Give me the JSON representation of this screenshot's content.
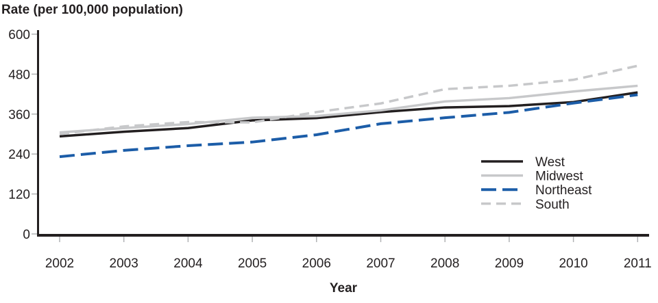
{
  "chart_data": {
    "type": "line",
    "title": "Rate (per 100,000 population)",
    "xlabel": "Year",
    "ylabel": "Rate (per 100,000 population)",
    "x": [
      2002,
      2003,
      2004,
      2005,
      2006,
      2007,
      2008,
      2009,
      2010,
      2011
    ],
    "yticks": [
      0,
      120,
      240,
      360,
      480,
      600
    ],
    "ylim": [
      0,
      600
    ],
    "grid": false,
    "legend_position": "right-center",
    "axis_color": "#231f20",
    "tick_color": "#b1b3b5",
    "series": [
      {
        "name": "West",
        "color": "#231f20",
        "dash": "solid",
        "values": [
          293,
          307,
          318,
          341,
          348,
          366,
          380,
          384,
          396,
          425
        ]
      },
      {
        "name": "Midwest",
        "color": "#c7c8ca",
        "dash": "solid",
        "values": [
          305,
          318,
          330,
          349,
          354,
          371,
          398,
          408,
          428,
          445
        ]
      },
      {
        "name": "Northeast",
        "color": "#1c5da8",
        "dash": "long-dash",
        "values": [
          232,
          251,
          265,
          276,
          298,
          331,
          349,
          365,
          393,
          418
        ]
      },
      {
        "name": "South",
        "color": "#c7c8ca",
        "dash": "dash",
        "values": [
          300,
          323,
          336,
          335,
          366,
          392,
          435,
          445,
          463,
          505
        ]
      }
    ]
  }
}
